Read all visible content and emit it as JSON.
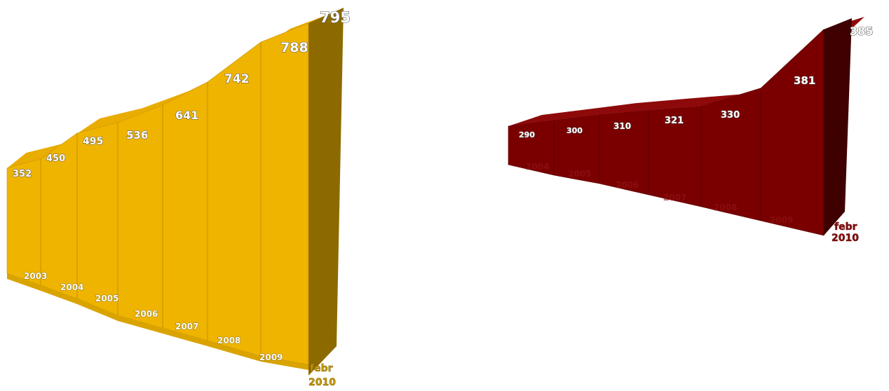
{
  "colors": {
    "gold_face": "#efb400",
    "gold_top": "#e9ac00",
    "gold_side": "#8c6a00",
    "red_face": "#7a0000",
    "red_top": "#8e0a0a",
    "red_side": "#3e0000",
    "background": "#ffffff"
  },
  "chart_data": [
    {
      "type": "area",
      "style": "3d-perspective",
      "color": "gold",
      "categories": [
        "2003",
        "2004",
        "2005",
        "2006",
        "2007",
        "2008",
        "2009",
        "febr 2010"
      ],
      "values": [
        352,
        450,
        495,
        536,
        641,
        742,
        788,
        795
      ],
      "category_labels": [
        "2003",
        "2004",
        "2005",
        "2006",
        "2007",
        "2008",
        "2009"
      ],
      "end_label_lines": [
        "febr",
        "2010"
      ],
      "value_labels": [
        "352",
        "450",
        "495",
        "536",
        "641",
        "742",
        "788",
        "795"
      ]
    },
    {
      "type": "area",
      "style": "3d-perspective",
      "color": "dark-red",
      "categories": [
        "2004",
        "2005",
        "2006",
        "2007",
        "2008",
        "2009",
        "febr 2010"
      ],
      "values": [
        290,
        300,
        310,
        321,
        330,
        381,
        385
      ],
      "category_labels": [
        "2004",
        "2005",
        "2006",
        "2007",
        "2008",
        "2009"
      ],
      "end_label_lines": [
        "febr",
        "2010"
      ],
      "value_labels": [
        "290",
        "300",
        "310",
        "321",
        "330",
        "381",
        "385"
      ]
    }
  ]
}
